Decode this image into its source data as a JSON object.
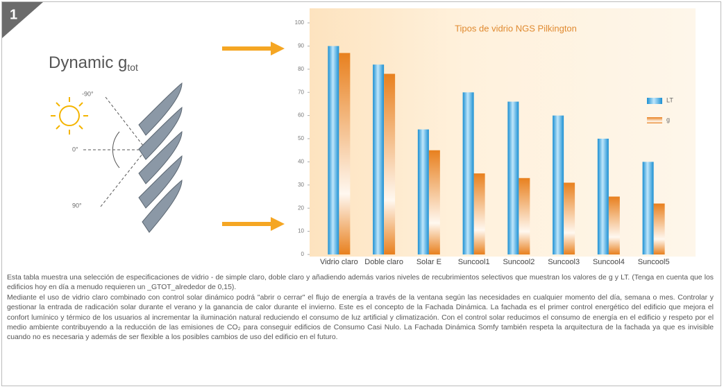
{
  "badge": "1",
  "diagram": {
    "title": "Dynamic g",
    "title_sub": "tot",
    "angles": [
      "-90°",
      "0°",
      "90°"
    ]
  },
  "chart_data": {
    "type": "bar",
    "title": "Tipos de vidrio NGS Pilkington",
    "categories": [
      "Vidrio claro",
      "Doble claro",
      "Solar E",
      "Suncool1",
      "Suncool2",
      "Suncool3",
      "Suncool4",
      "Suncool5"
    ],
    "series": [
      {
        "name": "LT",
        "color": "#1b8fd2",
        "values": [
          90,
          82,
          54,
          70,
          66,
          60,
          50,
          40
        ]
      },
      {
        "name": "g",
        "color": "#e8801e",
        "values": [
          87,
          78,
          45,
          35,
          33,
          31,
          25,
          22
        ]
      }
    ],
    "ylim": [
      0,
      100
    ],
    "yticks": [
      0,
      10,
      20,
      30,
      40,
      50,
      60,
      70,
      80,
      90,
      100
    ],
    "grid": false,
    "legend": "right"
  },
  "caption": [
    "Esta tabla muestra una selección de especificaciones de vidrio - de simple claro, doble claro y añadiendo además varios niveles de recubrimientos selectivos que muestran los valores de g y LT. (Tenga en cuenta que los edificios hoy en día a menudo requieren un _GTOT_alrededor de 0,15).",
    "Mediante el uso de vidrio claro combinado con control solar dinámico podrá \"abrir o cerrar\" el flujo de energía a través de la ventana según las necesidades en cualquier momento del día, semana o mes. Controlar y gestionar la entrada de radicación solar durante el verano y la ganancia de calor durante el invierno. Este es el concepto de la Fachada Dinámica. La fachada es el primer control energético del edificio que mejora el confort lumínico y térmico de los usuarios al incrementar la iluminación natural reduciendo el consumo de luz artificial y climatización. Con el control solar reducimos el consumo de energía en el edificio y respeto por el medio ambiente contribuyendo a la reducción de las emisiones de CO₂ para conseguir edificios de Consumo Casi Nulo. La Fachada Dinámica Somfy también respeta la arquitectura de la fachada ya que es invisible cuando no es necesaria y además de ser flexible a los posibles cambios de uso del edificio en el futuro."
  ]
}
